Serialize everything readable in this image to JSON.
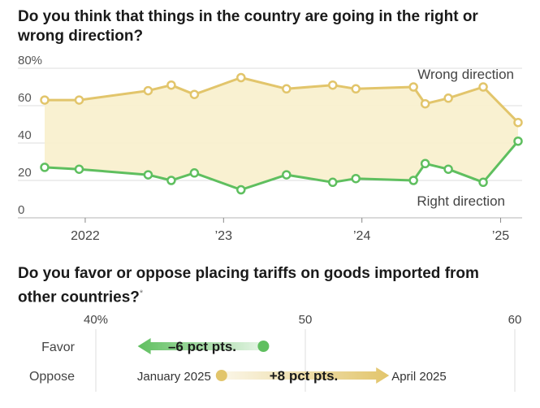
{
  "chart_data": [
    {
      "type": "line",
      "title": "Do you think that things in the country are going in the right or wrong direction?",
      "ylim": [
        0,
        80
      ],
      "yticks": [
        "80%",
        "60",
        "40",
        "20",
        "0"
      ],
      "xticks": [
        "2022",
        "’23",
        "’24",
        "’25"
      ],
      "grid": true,
      "series": [
        {
          "name": "Wrong direction",
          "color": "#e2c56b",
          "points": [
            {
              "x": "2021-09",
              "y": 63
            },
            {
              "x": "2021-12",
              "y": 63
            },
            {
              "x": "2022-06",
              "y": 68
            },
            {
              "x": "2022-08",
              "y": 71
            },
            {
              "x": "2022-10",
              "y": 66
            },
            {
              "x": "2023-02",
              "y": 75
            },
            {
              "x": "2023-06",
              "y": 69
            },
            {
              "x": "2023-10",
              "y": 71
            },
            {
              "x": "2023-12",
              "y": 69
            },
            {
              "x": "2024-05",
              "y": 70
            },
            {
              "x": "2024-06",
              "y": 61
            },
            {
              "x": "2024-08",
              "y": 64
            },
            {
              "x": "2024-11",
              "y": 70
            },
            {
              "x": "2025-02",
              "y": 51
            }
          ]
        },
        {
          "name": "Right direction",
          "color": "#5fbf5f",
          "points": [
            {
              "x": "2021-09",
              "y": 27
            },
            {
              "x": "2021-12",
              "y": 26
            },
            {
              "x": "2022-06",
              "y": 23
            },
            {
              "x": "2022-08",
              "y": 20
            },
            {
              "x": "2022-10",
              "y": 24
            },
            {
              "x": "2023-02",
              "y": 15
            },
            {
              "x": "2023-06",
              "y": 23
            },
            {
              "x": "2023-10",
              "y": 19
            },
            {
              "x": "2023-12",
              "y": 21
            },
            {
              "x": "2024-05",
              "y": 20
            },
            {
              "x": "2024-06",
              "y": 29
            },
            {
              "x": "2024-08",
              "y": 26
            },
            {
              "x": "2024-11",
              "y": 19
            },
            {
              "x": "2025-02",
              "y": 41
            }
          ]
        }
      ]
    },
    {
      "type": "bar",
      "title": "Do you favor or oppose placing tariffs on goods imported from other countries?",
      "footnote_marker": "*",
      "xlim": [
        40,
        60
      ],
      "xticks": [
        "40%",
        "50",
        "60"
      ],
      "start_label": "January 2025",
      "end_label": "April 2025",
      "rows": [
        {
          "name": "Favor",
          "from": 48,
          "to": 42,
          "change_label": "–6 pct pts.",
          "color": "#5fbf5f"
        },
        {
          "name": "Oppose",
          "from": 46,
          "to": 54,
          "change_label": "+8 pct pts.",
          "color": "#e2c56b"
        }
      ]
    }
  ]
}
